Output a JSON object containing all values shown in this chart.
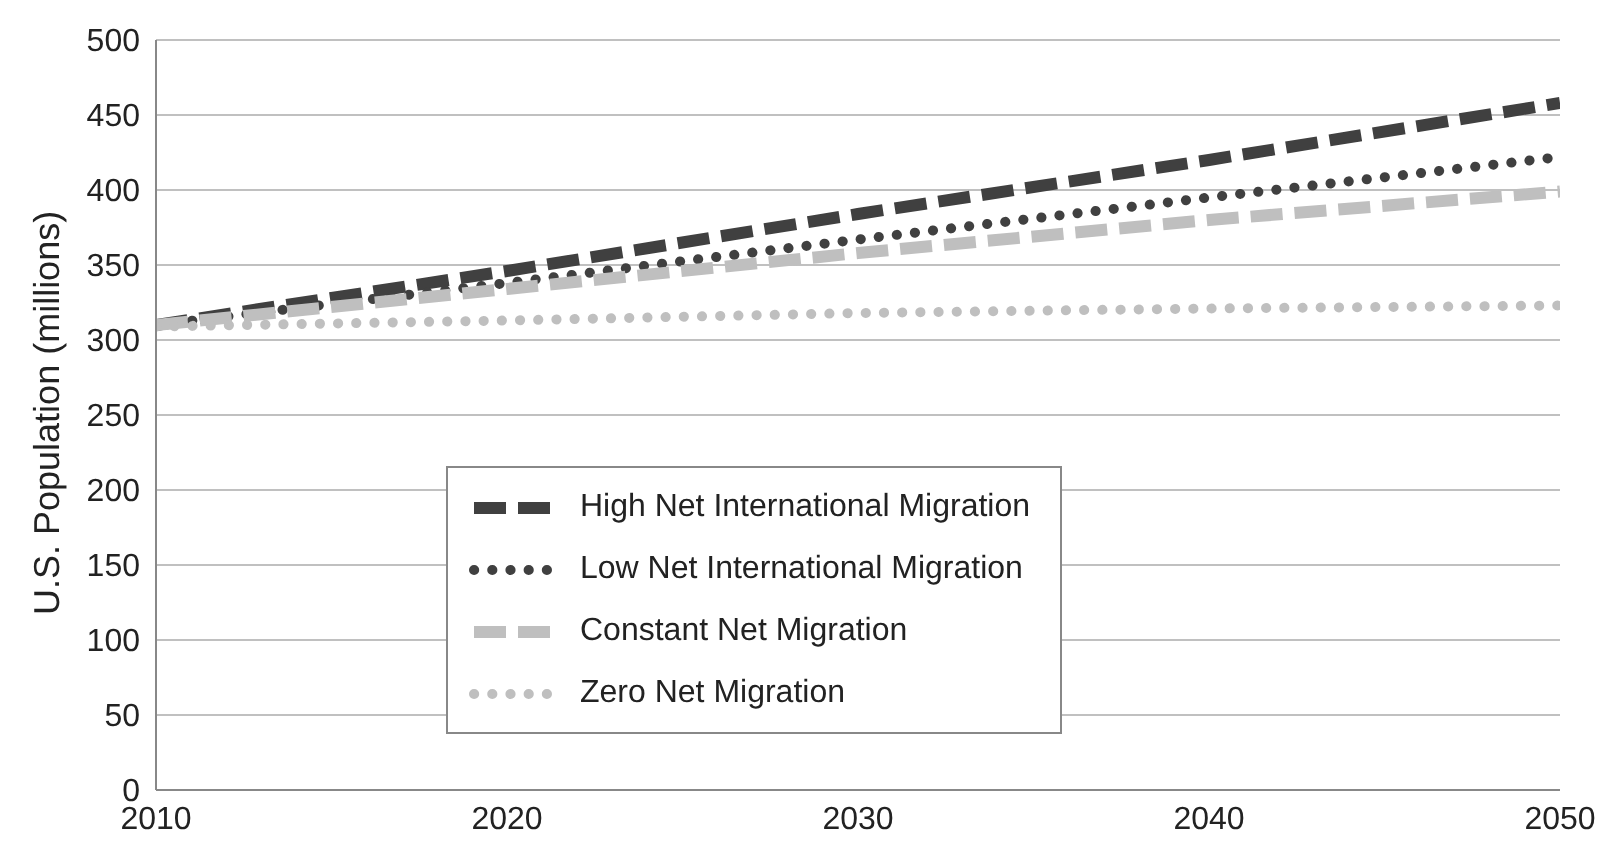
{
  "chart_data": {
    "type": "line",
    "ylabel": "U.S. Population (millions)",
    "x": [
      2010,
      2020,
      2030,
      2040,
      2050
    ],
    "series": [
      {
        "name": "High Net International Migration",
        "color": "#404040",
        "line_style": "dashed",
        "values": [
          310,
          346,
          384,
          420,
          458
        ]
      },
      {
        "name": "Low Net International Migration",
        "color": "#404040",
        "line_style": "dotted",
        "values": [
          310,
          338,
          367,
          395,
          422
        ]
      },
      {
        "name": "Constant Net Migration",
        "color": "#bfbfbf",
        "line_style": "dashed",
        "values": [
          310,
          334,
          358,
          380,
          399
        ]
      },
      {
        "name": "Zero Net Migration",
        "color": "#bfbfbf",
        "line_style": "dotted",
        "values": [
          309,
          313,
          318,
          321,
          323
        ]
      }
    ],
    "xlim": [
      2010,
      2050
    ],
    "xticks": [
      2010,
      2020,
      2030,
      2040,
      2050
    ],
    "ylim": [
      0,
      500
    ],
    "yticks": [
      0,
      50,
      100,
      150,
      200,
      250,
      300,
      350,
      400,
      450,
      500
    ],
    "grid": "y",
    "legend": "center",
    "marker": "none"
  }
}
